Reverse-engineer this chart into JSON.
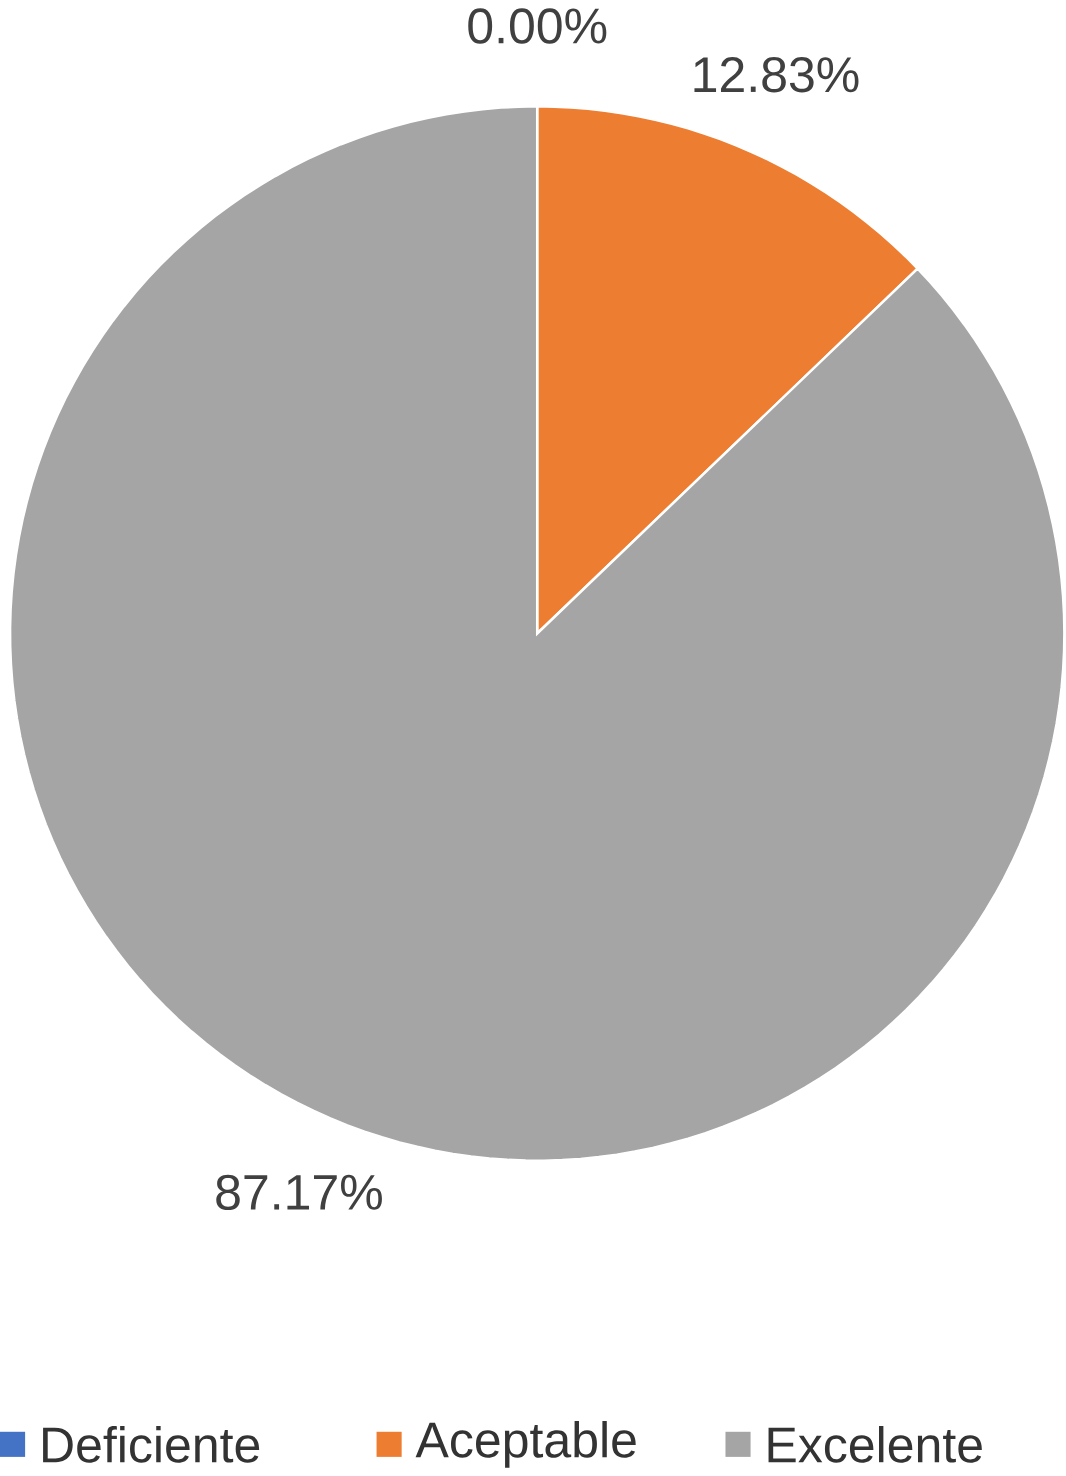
{
  "chart_data": {
    "type": "pie",
    "categories": [
      "Deficiente",
      "Aceptable",
      "Excelente"
    ],
    "values": [
      0,
      12.83,
      87.17
    ],
    "value_labels": [
      "0.00%",
      "12.83%",
      "87.17%"
    ],
    "colors": [
      "#4472c4",
      "#ed7d31",
      "#a5a5a5"
    ],
    "legend": "bottom"
  }
}
